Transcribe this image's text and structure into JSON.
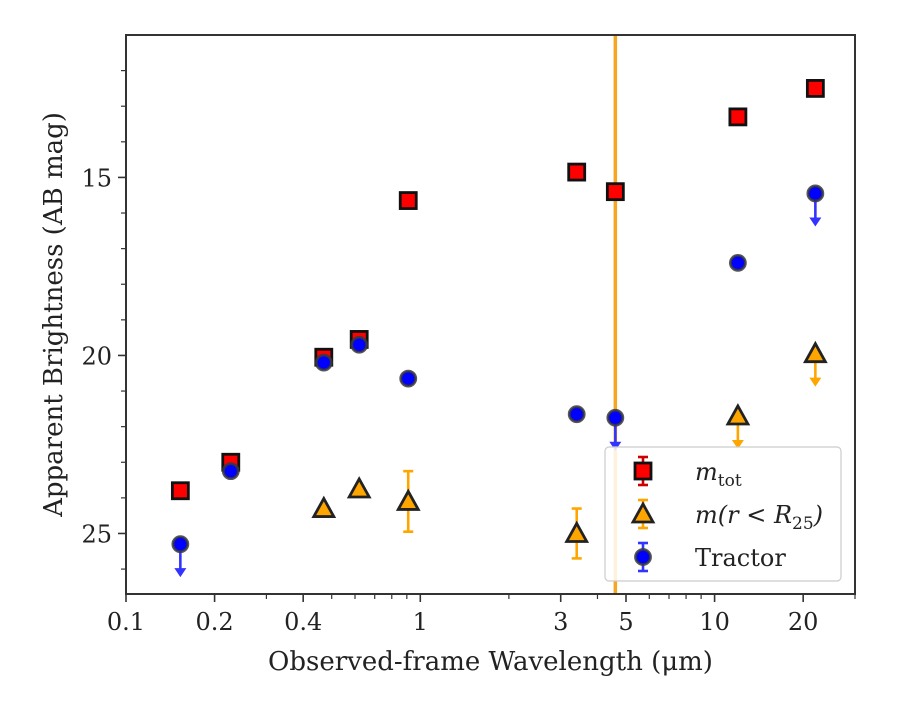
{
  "chart_data": {
    "type": "scatter",
    "title": "",
    "xlabel": "Observed-frame Wavelength (μm)",
    "ylabel": "Apparent Brightness (AB mag)",
    "xscale": "log",
    "xlim": [
      0.1,
      30
    ],
    "ylim": [
      26.7,
      11.0
    ],
    "y_inverted": true,
    "grid": false,
    "xticks": [
      {
        "value": 0.1,
        "label": "0.1"
      },
      {
        "value": 0.2,
        "label": "0.2"
      },
      {
        "value": 0.4,
        "label": "0.4"
      },
      {
        "value": 1,
        "label": "1"
      },
      {
        "value": 3,
        "label": "3"
      },
      {
        "value": 5,
        "label": "5"
      },
      {
        "value": 10,
        "label": "10"
      },
      {
        "value": 20,
        "label": "20"
      }
    ],
    "yticks": [
      {
        "value": 15,
        "label": "15"
      },
      {
        "value": 20,
        "label": "20"
      },
      {
        "value": 25,
        "label": "25"
      }
    ],
    "vline": {
      "x": 4.6,
      "color": "#f5a623"
    },
    "legend_position": "lower-right",
    "series": [
      {
        "name": "m_tot",
        "marker": "square",
        "color": "#ff0000",
        "errcolor": "#cc0000",
        "points": [
          {
            "x": 0.153,
            "y": 23.8
          },
          {
            "x": 0.227,
            "y": 23.0
          },
          {
            "x": 0.47,
            "y": 20.05
          },
          {
            "x": 0.62,
            "y": 19.55
          },
          {
            "x": 0.91,
            "y": 15.65
          },
          {
            "x": 3.4,
            "y": 14.85
          },
          {
            "x": 4.6,
            "y": 15.4
          },
          {
            "x": 12.0,
            "y": 13.3
          },
          {
            "x": 22.0,
            "y": 12.5
          }
        ]
      },
      {
        "name": "m(r<R25)",
        "marker": "triangle",
        "color": "#ffa500",
        "errcolor": "#ffa500",
        "points": [
          {
            "x": 0.47,
            "y": 24.3
          },
          {
            "x": 0.62,
            "y": 23.75
          },
          {
            "x": 0.91,
            "y": 24.1,
            "err": 0.85
          },
          {
            "x": 3.4,
            "y": 25.0,
            "err": 0.7
          },
          {
            "x": 12.0,
            "y": 21.7,
            "upper_limit": true
          },
          {
            "x": 22.0,
            "y": 19.95,
            "upper_limit": true
          }
        ]
      },
      {
        "name": "Tractor",
        "marker": "circle",
        "color": "#0000ff",
        "errcolor": "#3333ff",
        "points": [
          {
            "x": 0.153,
            "y": 25.3,
            "upper_limit": true
          },
          {
            "x": 0.227,
            "y": 23.25
          },
          {
            "x": 0.47,
            "y": 20.2
          },
          {
            "x": 0.62,
            "y": 19.7
          },
          {
            "x": 0.91,
            "y": 20.65
          },
          {
            "x": 3.4,
            "y": 21.65
          },
          {
            "x": 4.6,
            "y": 21.75,
            "upper_limit": true
          },
          {
            "x": 12.0,
            "y": 17.4
          },
          {
            "x": 22.0,
            "y": 15.45,
            "upper_limit": true
          }
        ]
      }
    ]
  }
}
